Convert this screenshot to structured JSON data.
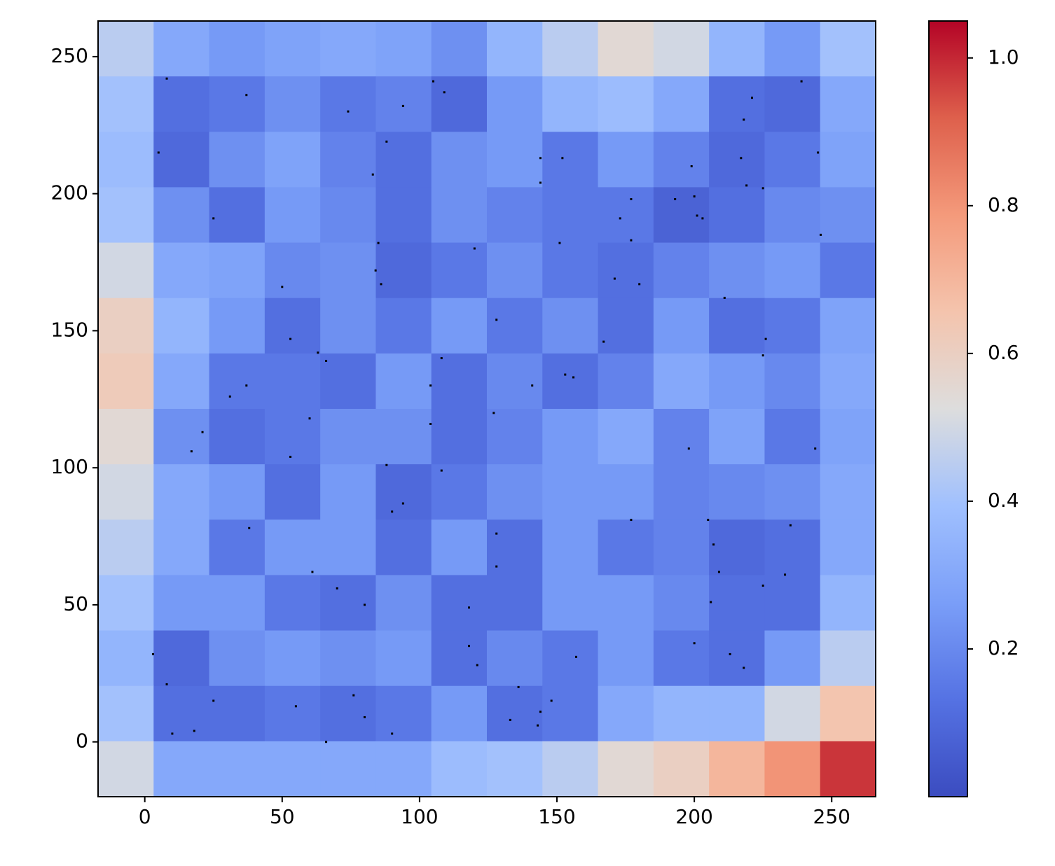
{
  "chart_data": {
    "type": "heatmap",
    "colormap": "coolwarm",
    "xlim": [
      -17,
      266
    ],
    "ylim": [
      -20,
      263
    ],
    "zlim": [
      0,
      1.05
    ],
    "xticks": [
      0,
      50,
      100,
      150,
      200,
      250
    ],
    "yticks": [
      0,
      50,
      100,
      150,
      200,
      250
    ],
    "colorbar_ticks": [
      0.2,
      0.4,
      0.6,
      0.8,
      {
        "value": 1,
        "label": "1.0"
      }
    ],
    "z": [
      [
        0.45,
        0.3,
        0.25,
        0.28,
        0.3,
        0.28,
        0.22,
        0.35,
        0.45,
        0.55,
        0.5,
        0.35,
        0.25,
        0.4
      ],
      [
        0.4,
        0.12,
        0.15,
        0.22,
        0.15,
        0.18,
        0.1,
        0.25,
        0.35,
        0.38,
        0.3,
        0.12,
        0.1,
        0.3
      ],
      [
        0.38,
        0.1,
        0.22,
        0.28,
        0.18,
        0.12,
        0.22,
        0.25,
        0.15,
        0.25,
        0.18,
        0.1,
        0.15,
        0.28
      ],
      [
        0.4,
        0.22,
        0.12,
        0.25,
        0.2,
        0.12,
        0.22,
        0.18,
        0.15,
        0.15,
        0.08,
        0.12,
        0.2,
        0.22
      ],
      [
        0.5,
        0.3,
        0.28,
        0.2,
        0.22,
        0.1,
        0.15,
        0.22,
        0.15,
        0.12,
        0.18,
        0.22,
        0.25,
        0.15
      ],
      [
        0.6,
        0.35,
        0.25,
        0.12,
        0.22,
        0.15,
        0.25,
        0.15,
        0.22,
        0.12,
        0.25,
        0.12,
        0.15,
        0.28
      ],
      [
        0.62,
        0.3,
        0.15,
        0.15,
        0.12,
        0.25,
        0.12,
        0.2,
        0.12,
        0.18,
        0.3,
        0.25,
        0.2,
        0.3
      ],
      [
        0.55,
        0.22,
        0.12,
        0.15,
        0.22,
        0.22,
        0.12,
        0.18,
        0.25,
        0.3,
        0.18,
        0.28,
        0.15,
        0.28
      ],
      [
        0.5,
        0.3,
        0.25,
        0.12,
        0.25,
        0.1,
        0.15,
        0.22,
        0.25,
        0.25,
        0.18,
        0.2,
        0.22,
        0.3
      ],
      [
        0.45,
        0.3,
        0.15,
        0.25,
        0.25,
        0.12,
        0.25,
        0.12,
        0.25,
        0.15,
        0.18,
        0.1,
        0.12,
        0.3
      ],
      [
        0.4,
        0.25,
        0.25,
        0.15,
        0.12,
        0.22,
        0.12,
        0.12,
        0.25,
        0.25,
        0.2,
        0.12,
        0.12,
        0.35
      ],
      [
        0.35,
        0.1,
        0.22,
        0.25,
        0.22,
        0.25,
        0.12,
        0.2,
        0.15,
        0.25,
        0.15,
        0.12,
        0.25,
        0.45
      ],
      [
        0.4,
        0.12,
        0.12,
        0.15,
        0.12,
        0.15,
        0.25,
        0.12,
        0.15,
        0.3,
        0.35,
        0.35,
        0.5,
        0.65
      ],
      [
        0.5,
        0.3,
        0.3,
        0.3,
        0.3,
        0.3,
        0.38,
        0.4,
        0.45,
        0.55,
        0.6,
        0.7,
        0.8,
        0.98
      ]
    ],
    "points": {
      "color": "#000000",
      "x": [
        8,
        37,
        5,
        25,
        74,
        94,
        105,
        109,
        88,
        83,
        144,
        152,
        144,
        120,
        151,
        85,
        84,
        86,
        50,
        128,
        53,
        63,
        66,
        108,
        104,
        37,
        31,
        141,
        153,
        156,
        127,
        60,
        104,
        21,
        17,
        53,
        88,
        108,
        94,
        90,
        38,
        128,
        128,
        61,
        70,
        80,
        118,
        118,
        121,
        3,
        8,
        10,
        18,
        25,
        55,
        76,
        80,
        90,
        66,
        136,
        133,
        148,
        144,
        143,
        157,
        177,
        205,
        207,
        209,
        206,
        200,
        213,
        218,
        225,
        233,
        235,
        198,
        244,
        167,
        171,
        180,
        177,
        173,
        177,
        193,
        200,
        201,
        203,
        199,
        217,
        219,
        225,
        211,
        226,
        225,
        246,
        245,
        239,
        221,
        218
      ],
      "y": [
        242,
        236,
        215,
        191,
        230,
        232,
        241,
        237,
        219,
        207,
        213,
        213,
        204,
        180,
        182,
        182,
        172,
        167,
        166,
        154,
        147,
        142,
        139,
        140,
        130,
        130,
        126,
        130,
        134,
        133,
        120,
        118,
        116,
        113,
        106,
        104,
        101,
        99,
        87,
        84,
        78,
        76,
        64,
        62,
        56,
        50,
        49,
        35,
        28,
        32,
        21,
        3,
        4,
        15,
        13,
        17,
        9,
        3,
        0,
        20,
        8,
        15,
        11,
        6,
        31,
        81,
        81,
        72,
        62,
        51,
        36,
        32,
        27,
        57,
        61,
        79,
        107,
        107,
        146,
        169,
        167,
        183,
        191,
        198,
        198,
        199,
        192,
        191,
        210,
        213,
        203,
        202,
        162,
        147,
        141,
        185,
        215,
        241,
        235,
        227
      ]
    }
  }
}
